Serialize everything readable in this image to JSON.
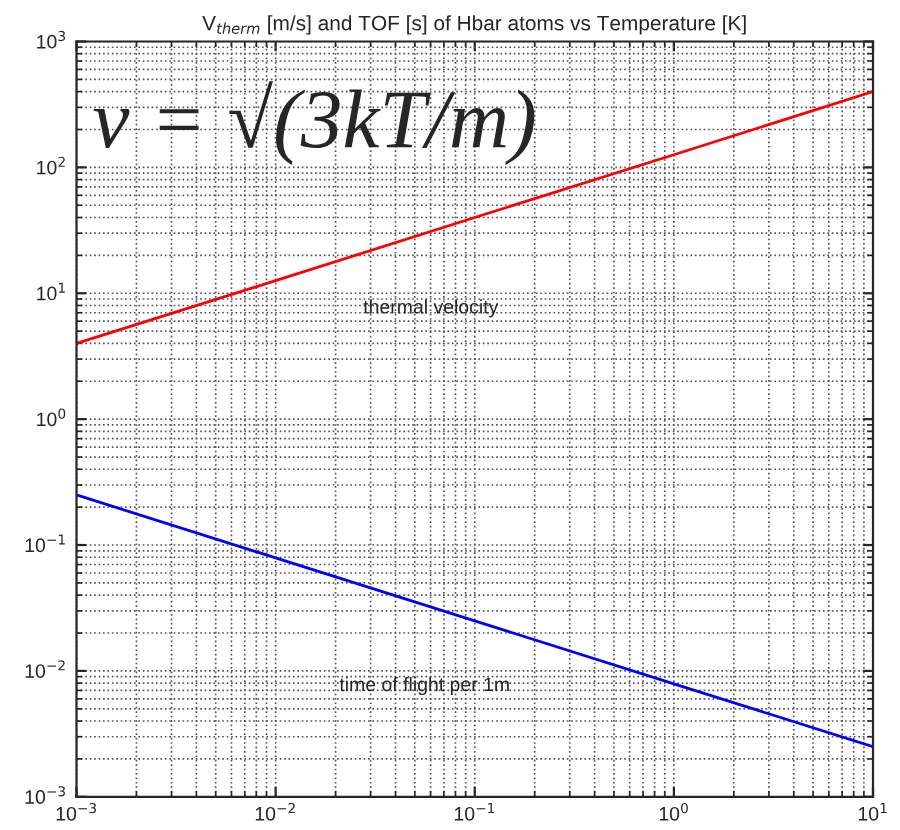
{
  "chart_data": {
    "type": "line",
    "title": "V$_{therm}$ [m/s] and TOF [s] of Hbar atoms vs Temperature [K]",
    "x": [
      0.001,
      0.01,
      0.1,
      1,
      10
    ],
    "series": [
      {
        "color": "#ff0000",
        "values": [
          4,
          12.6,
          40,
          126,
          400
        ]
      },
      {
        "color": "#0000ff",
        "values": [
          0.25,
          0.079,
          0.025,
          0.0079,
          0.0025
        ]
      }
    ],
    "log": "xy",
    "xlim": [
      0.001,
      10
    ],
    "ylim": [
      0.001,
      1000
    ],
    "xticks": [
      {
        "value": 0.001,
        "label": "10$^{−3}$"
      },
      {
        "value": 0.01,
        "label": "10$^{−2}$"
      },
      {
        "value": 0.1,
        "label": "10$^{−1}$"
      },
      {
        "value": 1,
        "label": "10$^{0}$"
      },
      {
        "value": 10,
        "label": "10$^{1}$"
      }
    ],
    "yticks": [
      {
        "value": 0.001,
        "label": "10$^{−3}$"
      },
      {
        "value": 0.01,
        "label": "10$^{−2}$"
      },
      {
        "value": 0.1,
        "label": "10$^{−1}$"
      },
      {
        "value": 1,
        "label": "10$^{0}$"
      },
      {
        "value": 10,
        "label": "10$^{1}$"
      },
      {
        "value": 100,
        "label": "10$^{2}$"
      },
      {
        "value": 1000,
        "label": "10$^{3}$"
      }
    ],
    "grid": true,
    "marker": "none",
    "line_style": "solid",
    "annotations": [
      "v = √(3kT/m)",
      "thermal velocity",
      "time of flight per 1m"
    ]
  }
}
